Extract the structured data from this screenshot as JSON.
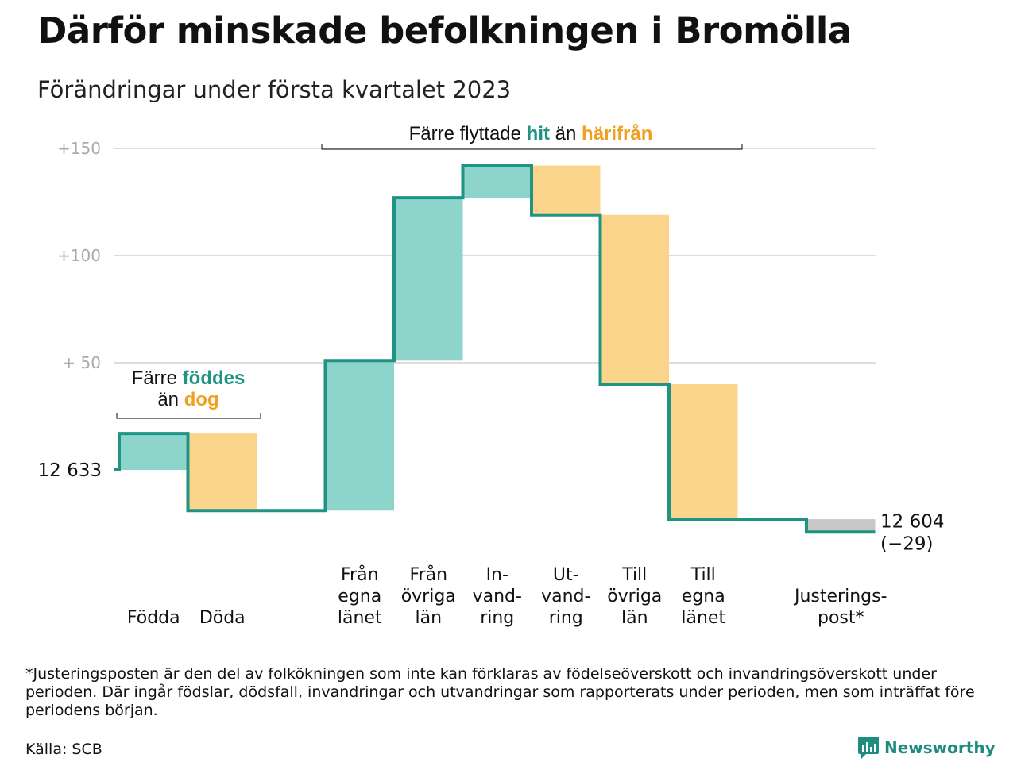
{
  "title": "Därför minskade befolkningen i Bromölla",
  "subtitle": "Förändringar under första kvartalet 2023",
  "chart_data": {
    "type": "waterfall",
    "start_value": 12633,
    "start_label": "12 633",
    "end_label": "12 604",
    "end_change_label": "(−29)",
    "y_ticks": [
      {
        "value": 150,
        "label": "+150"
      },
      {
        "value": 100,
        "label": "+100"
      },
      {
        "value": 50,
        "label": "+ 50"
      }
    ],
    "ylim": [
      -30,
      158
    ],
    "steps": [
      {
        "label": [
          "Födda"
        ],
        "change": 17,
        "kind": "in",
        "slot": 0
      },
      {
        "label": [
          "Döda"
        ],
        "change": -36,
        "kind": "out",
        "slot": 1
      },
      {
        "label": [
          "Från",
          "egna",
          "länet"
        ],
        "change": 70,
        "kind": "in",
        "slot": 3
      },
      {
        "label": [
          "Från",
          "övriga",
          "län"
        ],
        "change": 76,
        "kind": "in",
        "slot": 4
      },
      {
        "label": [
          "In-",
          "vand-",
          "ring"
        ],
        "change": 15,
        "kind": "in",
        "slot": 5
      },
      {
        "label": [
          "Ut-",
          "vand-",
          "ring"
        ],
        "change": -23,
        "kind": "out",
        "slot": 6
      },
      {
        "label": [
          "Till",
          "övriga",
          "län"
        ],
        "change": -79,
        "kind": "out",
        "slot": 7
      },
      {
        "label": [
          "Till",
          "egna",
          "länet"
        ],
        "change": -63,
        "kind": "out",
        "slot": 8
      },
      {
        "label": [
          "Justerings-",
          "post*"
        ],
        "change": -6,
        "kind": "adjust",
        "slot": 10
      }
    ],
    "annotations": [
      {
        "parts": [
          {
            "text": "Färre ",
            "kind": "plain"
          },
          {
            "text": "föddes",
            "kind": "in"
          }
        ],
        "line2": [
          {
            "text": "än ",
            "kind": "plain"
          },
          {
            "text": "dog",
            "kind": "out"
          }
        ]
      },
      {
        "parts": [
          {
            "text": "Färre flyttade ",
            "kind": "plain"
          },
          {
            "text": "hit",
            "kind": "in"
          },
          {
            "text": " än ",
            "kind": "plain"
          },
          {
            "text": "härifrån",
            "kind": "out"
          }
        ]
      }
    ],
    "colors": {
      "in_fill": "#8dd5cb",
      "out_fill": "#fbd48c",
      "adjust_fill": "#c8c8c8",
      "line": "#1f9484",
      "in_text": "#1f9484",
      "out_text": "#f0a020",
      "grid": "#dddddd",
      "tick_text": "#aaaaaa"
    }
  },
  "footnote": "*Justeringsposten är den del av folkökningen som inte kan förklaras av födelseöverskott och invandringsöverskott under perioden. Där ingår födslar, dödsfall, invandringar och utvandringar som rapporterats under perioden, men som inträffat före periodens början.",
  "source": "Källa: SCB",
  "brand": {
    "name": "Newsworthy",
    "icon": "newsworthy-logo-icon"
  }
}
